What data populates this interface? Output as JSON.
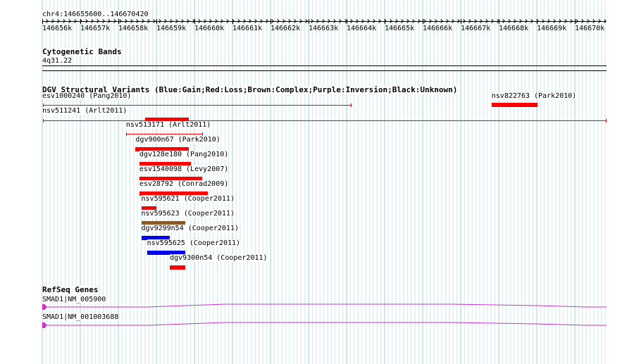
{
  "location": "chr4:146655600..146670420",
  "ruler": {
    "ticks": [
      "146656k",
      "146657k",
      "146658k",
      "146659k",
      "146660k",
      "146661k",
      "146662k",
      "146663k",
      "146664k",
      "146665k",
      "146666k",
      "146667k",
      "146668k",
      "146669k",
      "146670k"
    ]
  },
  "cytoband": {
    "title": "Cytogenetic Bands",
    "band": "4q31.22"
  },
  "dgv": {
    "title": "DGV Structural Variants (Blue:Gain;Red:Loss;Brown:Complex;Purple:Inversion;Black:Unknown)",
    "colors": {
      "gain": "#0000ee",
      "loss": "#ff0000",
      "complex": "#8b5a2b",
      "line": "#ff0000"
    },
    "variants": [
      {
        "label": "esv1000240 (Pang2010)",
        "style": "line",
        "type": "loss",
        "start": 146655600,
        "end": 146663700
      },
      {
        "label": "nsv822763 (Park2010)",
        "style": "bar",
        "type": "loss",
        "start": 146667400,
        "end": 146668600
      },
      {
        "label": "nsv511241 (Arlt2011)",
        "style": "line",
        "type": "loss",
        "start": 146655600,
        "end": 146670420
      },
      {
        "label": "",
        "style": "bar",
        "type": "loss",
        "start": 146658300,
        "end": 146659450
      },
      {
        "label": "nsv513171 (Arlt2011)",
        "style": "line",
        "type": "loss",
        "start": 146657800,
        "end": 146659800
      },
      {
        "label": "dgv900n67 (Park2010)",
        "style": "bar",
        "type": "loss",
        "start": 146658050,
        "end": 146659450
      },
      {
        "label": "dgv128e180 (Pang2010)",
        "style": "bar",
        "type": "loss",
        "start": 146658150,
        "end": 146659500
      },
      {
        "label": "esv1540098 (Levy2007)",
        "style": "bar",
        "type": "loss",
        "start": 146658150,
        "end": 146659800
      },
      {
        "label": "esv28792 (Conrad2009)",
        "style": "bar",
        "type": "loss",
        "start": 146658150,
        "end": 146659950
      },
      {
        "label": "nsv595621 (Cooper2011)",
        "style": "bar",
        "type": "loss",
        "start": 146658200,
        "end": 146658600
      },
      {
        "label": "nsv595623 (Cooper2011)",
        "style": "bar",
        "type": "complex",
        "start": 146658200,
        "end": 146659350
      },
      {
        "label": "dgv9299n54 (Cooper2011)",
        "style": "bar",
        "type": "gain",
        "start": 146658200,
        "end": 146658950
      },
      {
        "label": "nsv595625 (Cooper2011)",
        "style": "bar",
        "type": "gain",
        "start": 146658350,
        "end": 146659350
      },
      {
        "label": "dgv9300n54 (Cooper2011)",
        "style": "bar",
        "type": "loss",
        "start": 146658950,
        "end": 146659350
      }
    ]
  },
  "refseq": {
    "title": "RefSeq Genes",
    "color": "#cc33cc",
    "genes": [
      {
        "label": "SMAD1|NM_005900"
      },
      {
        "label": "SMAD1|NM_001003688"
      }
    ]
  }
}
